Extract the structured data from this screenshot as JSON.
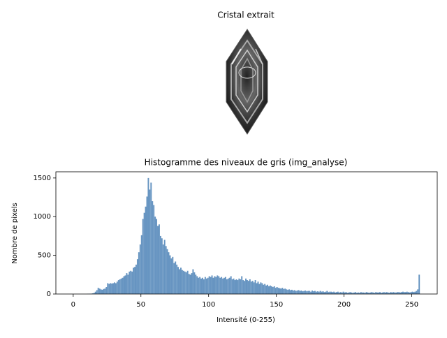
{
  "image_panel": {
    "title": "Cristal extrait"
  },
  "chart_data": {
    "type": "histogram",
    "title": "Histogramme des niveaux de gris (img_analyse)",
    "xlabel": "Intensité (0-255)",
    "ylabel": "Nombre de pixels",
    "color": "#6694c1",
    "bins": [
      0,
      1,
      2,
      3,
      4,
      5,
      6,
      7,
      8,
      9,
      10,
      11,
      12,
      13,
      14,
      15,
      16,
      17,
      18,
      19,
      20,
      21,
      22,
      23,
      24,
      25,
      26,
      27,
      28,
      29,
      30,
      31,
      32,
      33,
      34,
      35,
      36,
      37,
      38,
      39,
      40,
      41,
      42,
      43,
      44,
      45,
      46,
      47,
      48,
      49,
      50,
      51,
      52,
      53,
      54,
      55,
      56,
      57,
      58,
      59,
      60,
      61,
      62,
      63,
      64,
      65,
      66,
      67,
      68,
      69,
      70,
      71,
      72,
      73,
      74,
      75,
      76,
      77,
      78,
      79,
      80,
      81,
      82,
      83,
      84,
      85,
      86,
      87,
      88,
      89,
      90,
      91,
      92,
      93,
      94,
      95,
      96,
      97,
      98,
      99,
      100,
      101,
      102,
      103,
      104,
      105,
      106,
      107,
      108,
      109,
      110,
      111,
      112,
      113,
      114,
      115,
      116,
      117,
      118,
      119,
      120,
      121,
      122,
      123,
      124,
      125,
      126,
      127,
      128,
      129,
      130,
      131,
      132,
      133,
      134,
      135,
      136,
      137,
      138,
      139,
      140,
      141,
      142,
      143,
      144,
      145,
      146,
      147,
      148,
      149,
      150,
      151,
      152,
      153,
      154,
      155,
      156,
      157,
      158,
      159,
      160,
      161,
      162,
      163,
      164,
      165,
      166,
      167,
      168,
      169,
      170,
      171,
      172,
      173,
      174,
      175,
      176,
      177,
      178,
      179,
      180,
      181,
      182,
      183,
      184,
      185,
      186,
      187,
      188,
      189,
      190,
      191,
      192,
      193,
      194,
      195,
      196,
      197,
      198,
      199,
      200,
      201,
      202,
      203,
      204,
      205,
      206,
      207,
      208,
      209,
      210,
      211,
      212,
      213,
      214,
      215,
      216,
      217,
      218,
      219,
      220,
      221,
      222,
      223,
      224,
      225,
      226,
      227,
      228,
      229,
      230,
      231,
      232,
      233,
      234,
      235,
      236,
      237,
      238,
      239,
      240,
      241,
      242,
      243,
      244,
      245,
      246,
      247,
      248,
      249,
      250,
      251,
      252,
      253,
      254,
      255,
      256
    ],
    "values": [
      0,
      0,
      0,
      0,
      0,
      0,
      0,
      0,
      0,
      0,
      2,
      3,
      4,
      5,
      8,
      15,
      30,
      50,
      80,
      70,
      60,
      55,
      65,
      70,
      90,
      140,
      130,
      140,
      135,
      140,
      150,
      140,
      160,
      180,
      190,
      200,
      210,
      230,
      240,
      270,
      250,
      290,
      300,
      290,
      340,
      350,
      380,
      450,
      540,
      640,
      760,
      970,
      1050,
      1130,
      1260,
      1500,
      1350,
      1440,
      1200,
      1150,
      1000,
      970,
      880,
      900,
      750,
      720,
      640,
      700,
      620,
      580,
      540,
      500,
      460,
      480,
      400,
      420,
      380,
      350,
      320,
      340,
      310,
      300,
      290,
      280,
      300,
      260,
      250,
      270,
      320,
      280,
      250,
      230,
      210,
      220,
      200,
      210,
      190,
      220,
      200,
      210,
      230,
      220,
      240,
      210,
      230,
      220,
      240,
      230,
      210,
      220,
      200,
      210,
      220,
      190,
      200,
      210,
      230,
      190,
      200,
      180,
      190,
      180,
      200,
      190,
      230,
      180,
      170,
      200,
      180,
      170,
      190,
      160,
      170,
      150,
      180,
      140,
      160,
      130,
      150,
      140,
      120,
      130,
      110,
      120,
      100,
      110,
      100,
      90,
      100,
      80,
      90,
      80,
      75,
      70,
      80,
      65,
      70,
      60,
      55,
      60,
      50,
      55,
      45,
      50,
      40,
      45,
      50,
      40,
      45,
      35,
      40,
      45,
      35,
      40,
      40,
      30,
      45,
      35,
      40,
      30,
      35,
      30,
      40,
      30,
      35,
      25,
      30,
      40,
      25,
      30,
      30,
      25,
      30,
      20,
      25,
      30,
      20,
      25,
      20,
      30,
      20,
      25,
      15,
      20,
      25,
      20,
      15,
      20,
      25,
      15,
      20,
      15,
      25,
      20,
      20,
      15,
      25,
      20,
      15,
      20,
      25,
      20,
      15,
      25,
      20,
      20,
      25,
      15,
      20,
      25,
      20,
      25,
      20,
      15,
      25,
      20,
      25,
      20,
      20,
      25,
      25,
      20,
      25,
      30,
      25,
      25,
      30,
      25,
      20,
      25,
      30,
      25,
      30,
      40,
      60,
      250
    ],
    "xlim": [
      -12.8,
      268.8
    ],
    "ylim": [
      0,
      1580
    ],
    "xticks": [
      0,
      50,
      100,
      150,
      200,
      250
    ],
    "yticks": [
      0,
      500,
      1000,
      1500
    ]
  }
}
